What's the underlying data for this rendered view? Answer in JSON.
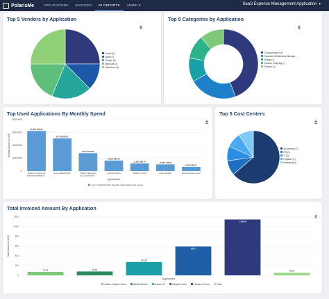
{
  "header": {
    "brand": "PolarisMe",
    "nav": [
      {
        "label": "APPLICATIONS",
        "active": false
      },
      {
        "label": "INVOICES",
        "active": false
      },
      {
        "label": "MI REPORTS",
        "active": true
      },
      {
        "label": "ADMIN",
        "active": false
      }
    ],
    "admin_chevron": "chevron-down-icon",
    "app_selector": "SaaS Expense Management Application"
  },
  "cards": {
    "vendors": {
      "title": "Top 5 Vendors by Application",
      "chart_data": {
        "type": "pie",
        "labels": [
          "Adobe (4)",
          "Apple (2)",
          "Google (3)",
          "Microsoft (3)",
          "Salesforce (4)"
        ],
        "values": [
          4,
          2,
          3,
          3,
          4
        ],
        "colors": [
          "#2e3a7c",
          "#1d57a7",
          "#24a69a",
          "#5fbf7a",
          "#8fcf76"
        ],
        "legend": "right"
      }
    },
    "categories": {
      "title": "Top 5 Categories by Application",
      "chart_data": {
        "type": "pie",
        "donut": true,
        "labels": [
          "Communication (4)",
          "Customer Relationship Manage...",
          "Design (1)",
          "Fashion Shopping (1)",
          "Finance (1)"
        ],
        "values": [
          4,
          2,
          1,
          1,
          1
        ],
        "colors": [
          "#2e3a7c",
          "#1d80c8",
          "#19a0a6",
          "#2db38b",
          "#7cc979"
        ],
        "legend": "right"
      }
    },
    "monthly_spend": {
      "title": "Top Used Applications By Monthly Spend",
      "chart_data": {
        "type": "bar",
        "categories": [
          "Business Travel and Expense Manageme...",
          "Invoice4BackOffice",
          "Digital Onboarding for Corporate Ba...",
          "Contract Writing",
          "Relative Trends",
          "Adobe Reader",
          "Adobe Creative Cloud"
        ],
        "values": [
          62357466.67,
          50700000.67,
          27805223.33,
          16367666.67,
          11827666.67,
          10397746.33,
          6560066.67
        ],
        "value_labels": [
          "62,357,466.67",
          "50,700,000.67",
          "27,805,223.33",
          "16,367,666.67",
          "11,827,666.67",
          "10,397,746.33",
          "6,560,066.67"
        ],
        "ylabel": "Monthly Spend (in USD)",
        "xlabel": "Applications",
        "yticks": [
          "0",
          "20000000",
          "40000000",
          "60000000",
          "80000000"
        ],
        "ylim": [
          0,
          80000000
        ],
        "legend_label": "Sum of Total Monthly Spendby Subscription And Invoice",
        "color": "#5b9bd5"
      }
    },
    "cost_centers": {
      "title": "Top 5 Cost Centers",
      "chart_data": {
        "type": "pie",
        "labels": [
          "Accounting (7)",
          "HR (1)",
          "IT (1)",
          "Logistics (1)",
          "Marketing (1)"
        ],
        "values": [
          7,
          1,
          1,
          1,
          1
        ],
        "colors": [
          "#1a3c6e",
          "#1f6fc0",
          "#2b8fe6",
          "#4aa8f2",
          "#7ccaf7"
        ],
        "legend": "right"
      }
    },
    "invoiced": {
      "title": "Total Invoiced Amount By Application",
      "chart_data": {
        "type": "bar",
        "categories": [
          "Adobe Creative Cloud",
          "Adobe Reader",
          "Adobe XD",
          "Relative Fresh",
          "Relative Trends",
          "Trello"
        ],
        "values": [
          71.2,
          79.94,
          273.27,
          593.1,
          1149.03,
          54.33
        ],
        "value_labels": [
          "71.20",
          "79.94",
          "273.27",
          "593.1",
          "1,149.03",
          "54.33"
        ],
        "colors": [
          "#7cc979",
          "#2d8c5c",
          "#19a0a6",
          "#1f5fa8",
          "#2e3a7c",
          "#9bd68a"
        ],
        "ylabel": "Total Amount (in USD)",
        "xlabel": "Applications",
        "yticks": [
          "0",
          "200",
          "400",
          "600",
          "800",
          "1000",
          "1200"
        ],
        "ylim": [
          0,
          1200
        ]
      }
    }
  }
}
